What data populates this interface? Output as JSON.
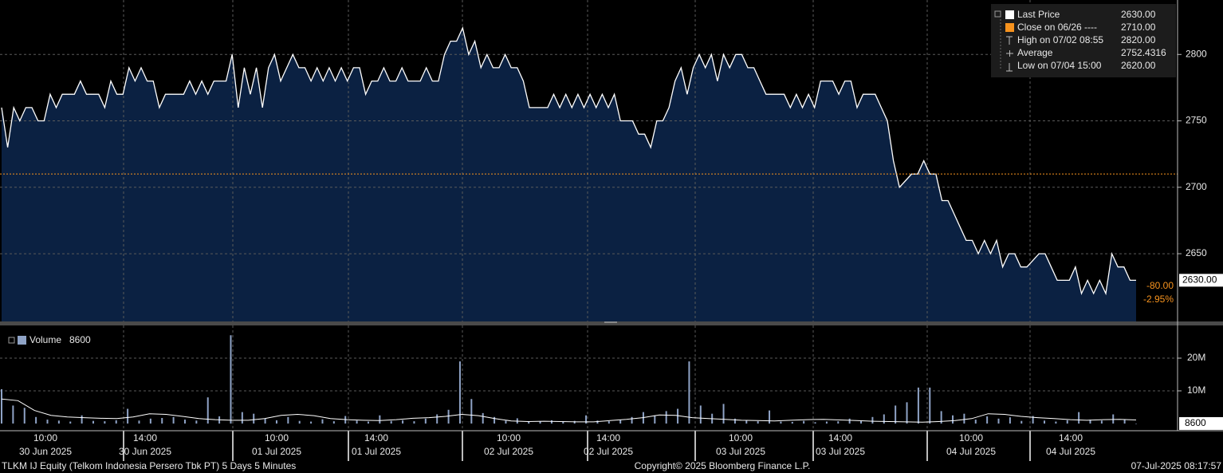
{
  "chart_data": [
    {
      "type": "area",
      "series": [
        {
          "name": "Last Price",
          "color": "#ffffff",
          "fill": "#0b2142",
          "values": [
            2760,
            2730,
            2760,
            2750,
            2760,
            2760,
            2750,
            2750,
            2770,
            2760,
            2770,
            2770,
            2770,
            2780,
            2770,
            2770,
            2770,
            2760,
            2780,
            2770,
            2770,
            2790,
            2780,
            2790,
            2780,
            2780,
            2760,
            2770,
            2770,
            2770,
            2770,
            2780,
            2770,
            2780,
            2770,
            2780,
            2780,
            2780,
            2800,
            2760,
            2790,
            2770,
            2790,
            2760,
            2790,
            2800,
            2780,
            2790,
            2800,
            2790,
            2790,
            2780,
            2790,
            2780,
            2790,
            2780,
            2790,
            2780,
            2790,
            2790,
            2770,
            2780,
            2780,
            2790,
            2780,
            2780,
            2790,
            2780,
            2780,
            2780,
            2790,
            2780,
            2780,
            2800,
            2810,
            2810,
            2820,
            2800,
            2810,
            2790,
            2800,
            2790,
            2790,
            2800,
            2790,
            2790,
            2780,
            2760,
            2760,
            2760,
            2760,
            2770,
            2760,
            2770,
            2760,
            2770,
            2760,
            2770,
            2760,
            2770,
            2760,
            2770,
            2750,
            2750,
            2750,
            2740,
            2740,
            2730,
            2750,
            2750,
            2760,
            2780,
            2790,
            2770,
            2790,
            2800,
            2790,
            2800,
            2780,
            2800,
            2790,
            2800,
            2800,
            2790,
            2790,
            2780,
            2770,
            2770,
            2770,
            2770,
            2760,
            2770,
            2760,
            2770,
            2760,
            2780,
            2780,
            2780,
            2770,
            2780,
            2780,
            2760,
            2770,
            2770,
            2770,
            2760,
            2750,
            2720,
            2700,
            2705,
            2710,
            2710,
            2720,
            2710,
            2710,
            2690,
            2690,
            2680,
            2670,
            2660,
            2660,
            2650,
            2660,
            2650,
            2660,
            2640,
            2650,
            2650,
            2640,
            2640,
            2645,
            2650,
            2650,
            2640,
            2630,
            2630,
            2630,
            2640,
            2620,
            2630,
            2620,
            2630,
            2620,
            2650,
            2640,
            2640,
            2630,
            2630
          ]
        }
      ],
      "reference_line": {
        "value": 2710,
        "color": "#f7931e"
      },
      "ylim": [
        2599,
        2841
      ],
      "yticks": [
        2650,
        2700,
        2750,
        2800
      ],
      "grid": true,
      "last_label": {
        "value": 2630,
        "label": "2630.00"
      },
      "change": {
        "value": -80,
        "label": "-80.00"
      },
      "change_pct": {
        "value": -2.95,
        "label": "-2.95%"
      },
      "legend": [
        {
          "name": "Last Price",
          "value": {
            "value": 2630,
            "label": "2630.00"
          }
        },
        {
          "name": "Close on 06/26 ----",
          "value": {
            "value": 2710,
            "label": "2710.00"
          }
        },
        {
          "name": "High on 07/02 08:55",
          "value": {
            "value": 2820,
            "label": "2820.00"
          }
        },
        {
          "name": "Average",
          "value": 2752.4316
        },
        {
          "name": "Low on 07/04 15:00",
          "value": {
            "value": 2620,
            "label": "2620.00"
          }
        }
      ]
    },
    {
      "type": "bar",
      "series": [
        {
          "name": "Volume",
          "color": "#8fa3c6",
          "values": [
            10500000,
            5500000,
            4800000,
            2000000,
            1200000,
            900000,
            600000,
            2500000,
            800000,
            700000,
            1000000,
            4500000,
            900000,
            1500000,
            1700000,
            2000000,
            1200000,
            900000,
            8000000,
            2200000,
            27000000,
            3500000,
            3000000,
            1500000,
            1000000,
            2000000,
            800000,
            600000,
            1300000,
            700000,
            2300000,
            900000,
            600000,
            2500000,
            800000,
            1000000,
            700000,
            1500000,
            2800000,
            4200000,
            19000000,
            7500000,
            3200000,
            2000000,
            900000,
            1600000,
            700000,
            600000,
            1000000,
            500000,
            800000,
            2500000,
            900000,
            700000,
            1200000,
            2000000,
            3500000,
            2500000,
            3800000,
            4500000,
            19000000,
            5500000,
            3000000,
            6000000,
            1500000,
            900000,
            700000,
            4000000,
            600000,
            500000,
            800000,
            400000,
            600000,
            700000,
            1500000,
            900000,
            2000000,
            2800000,
            5500000,
            6500000,
            11000000,
            11000000,
            3800000,
            2500000,
            3000000,
            1200000,
            2200000,
            1500000,
            1900000,
            800000,
            2300000,
            900000,
            600000,
            1000000,
            3500000,
            1200000,
            900000,
            2800000,
            1300000,
            8600
          ]
        }
      ],
      "moving_average": {
        "color": "#ffffff",
        "values": [
          7500000,
          7000000,
          4000000,
          2500000,
          2000000,
          1800000,
          1600000,
          1500000,
          2000000,
          3000000,
          2800000,
          2200000,
          1500000,
          1200000,
          1000000,
          1000000,
          1500000,
          2500000,
          2800000,
          2400000,
          1500000,
          1200000,
          1000000,
          900000,
          1200000,
          1600000,
          1800000,
          2200000,
          2800000,
          2400000,
          1500000,
          800000,
          600000,
          700000,
          600000,
          500000,
          500000,
          900000,
          1300000,
          1800000,
          2600000,
          2500000,
          1800000,
          1500000,
          1300000,
          1000000,
          900000,
          800000,
          1000000,
          1200000,
          1300000,
          1100000,
          900000,
          700000,
          600000,
          500000,
          400000,
          600000,
          900000,
          1500000,
          3000000,
          2800000,
          2200000,
          1800000,
          1500000,
          1200000,
          1000000,
          1200000,
          1300000,
          1100000
        ]
      },
      "ylim": [
        -2200000,
        30000000
      ],
      "yticks": [
        {
          "value": 10000000,
          "label": "10M"
        },
        {
          "value": 20000000,
          "label": "20M"
        }
      ],
      "grid": true
    }
  ],
  "x_axis_labels": [
    {
      "time": "10:00",
      "date": "30 Jun 2025"
    },
    {
      "time": "14:00",
      "date": "30 Jun 2025"
    },
    {
      "time": "10:00",
      "date": "01 Jul 2025"
    },
    {
      "time": "14:00",
      "date": "01 Jul 2025"
    },
    {
      "time": "10:00",
      "date": "02 Jul 2025"
    },
    {
      "time": "14:00",
      "date": "02 Jul 2025"
    },
    {
      "time": "10:00",
      "date": "03 Jul 2025"
    },
    {
      "time": "14:00",
      "date": "03 Jul 2025"
    },
    {
      "time": "10:00",
      "date": "04 Jul 2025"
    },
    {
      "time": "14:00",
      "date": "04 Jul 2025"
    }
  ],
  "footer": {
    "security": "TLKM IJ Equity (Telkom Indonesia Persero Tbk PT) 5 Days 5 Minutes",
    "copyright": "Copyright© 2025 Bloomberg Finance L.P.",
    "timestamp": "07-Jul-2025 08:17:57"
  }
}
